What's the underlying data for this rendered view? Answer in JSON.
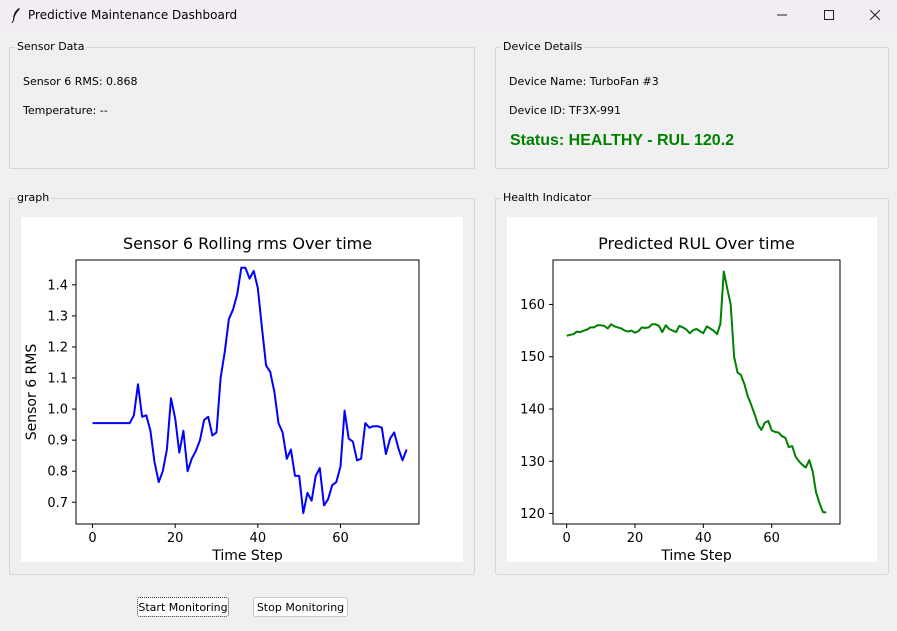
{
  "window": {
    "title": "Predictive Maintenance Dashboard"
  },
  "sensor_frame": {
    "label": "Sensor Data",
    "rms_text": "Sensor 6 RMS: 0.868",
    "temp_text": "Temperature: --"
  },
  "device_frame": {
    "label": "Device Details",
    "name_text": "Device Name: TurboFan #3",
    "id_text": "Device ID: TF3X-991",
    "status_text": "Status: HEALTHY - RUL 120.2",
    "status_color": "#008000"
  },
  "graph_frame": {
    "label": "graph"
  },
  "health_frame": {
    "label": "Health Indicator"
  },
  "buttons": {
    "start": "Start Monitoring",
    "stop": "Stop Monitoring"
  },
  "chart_data": [
    {
      "type": "line",
      "title": "Sensor 6 Rolling rms Over time",
      "xlabel": "Time Step",
      "ylabel": "Sensor 6 RMS",
      "xlim": [
        -4,
        79
      ],
      "ylim": [
        0.63,
        1.48
      ],
      "xticks": [
        0,
        20,
        40,
        60
      ],
      "yticks": [
        0.7,
        0.8,
        0.9,
        1.0,
        1.1,
        1.2,
        1.3,
        1.4
      ],
      "ytick_labels": [
        "0.7",
        "0.8",
        "0.9",
        "1.0",
        "1.1",
        "1.2",
        "1.3",
        "1.4"
      ],
      "series": [
        {
          "color": "#0000ff",
          "x": [
            0,
            1,
            2,
            3,
            4,
            5,
            6,
            7,
            8,
            9,
            10,
            11,
            12,
            13,
            14,
            15,
            16,
            17,
            18,
            19,
            20,
            21,
            22,
            23,
            24,
            25,
            26,
            27,
            28,
            29,
            30,
            31,
            32,
            33,
            34,
            35,
            36,
            37,
            38,
            39,
            40,
            41,
            42,
            43,
            44,
            45,
            46,
            47,
            48,
            49,
            50,
            51,
            52,
            53,
            54,
            55,
            56,
            57,
            58,
            59,
            60,
            61,
            62,
            63,
            64,
            65,
            66,
            67,
            68,
            69,
            70,
            71,
            72,
            73,
            74,
            75,
            76
          ],
          "y": [
            0.955,
            0.955,
            0.955,
            0.955,
            0.955,
            0.955,
            0.955,
            0.955,
            0.955,
            0.955,
            0.98,
            1.08,
            0.975,
            0.98,
            0.93,
            0.83,
            0.765,
            0.8,
            0.87,
            1.035,
            0.97,
            0.86,
            0.93,
            0.8,
            0.84,
            0.865,
            0.9,
            0.965,
            0.975,
            0.915,
            0.925,
            1.1,
            1.185,
            1.29,
            1.32,
            1.37,
            1.455,
            1.455,
            1.42,
            1.445,
            1.39,
            1.26,
            1.14,
            1.12,
            1.055,
            0.955,
            0.925,
            0.84,
            0.87,
            0.785,
            0.785,
            0.665,
            0.73,
            0.705,
            0.785,
            0.81,
            0.69,
            0.71,
            0.755,
            0.765,
            0.815,
            0.995,
            0.905,
            0.895,
            0.835,
            0.84,
            0.955,
            0.94,
            0.945,
            0.945,
            0.94,
            0.855,
            0.905,
            0.925,
            0.875,
            0.835,
            0.87
          ]
        }
      ]
    },
    {
      "type": "line",
      "title": "Predicted RUL Over time",
      "xlabel": "Time Step",
      "ylabel": "",
      "xlim": [
        -4,
        80
      ],
      "ylim": [
        118,
        168.5
      ],
      "xticks": [
        0,
        20,
        40,
        60
      ],
      "yticks": [
        120,
        130,
        140,
        150,
        160
      ],
      "ytick_labels": [
        "120",
        "130",
        "140",
        "150",
        "160"
      ],
      "series": [
        {
          "color": "#008000",
          "x": [
            0,
            1,
            2,
            3,
            4,
            5,
            6,
            7,
            8,
            9,
            10,
            11,
            12,
            13,
            14,
            15,
            16,
            17,
            18,
            19,
            20,
            21,
            22,
            23,
            24,
            25,
            26,
            27,
            28,
            29,
            30,
            31,
            32,
            33,
            34,
            35,
            36,
            37,
            38,
            39,
            40,
            41,
            42,
            43,
            44,
            45,
            46,
            47,
            48,
            49,
            50,
            51,
            52,
            53,
            54,
            55,
            56,
            57,
            58,
            59,
            60,
            61,
            62,
            63,
            64,
            65,
            66,
            67,
            68,
            69,
            70,
            71,
            72,
            73,
            74,
            75,
            76
          ],
          "y": [
            154.0,
            154.2,
            154.3,
            154.8,
            154.7,
            155.0,
            155.2,
            155.6,
            155.6,
            156.0,
            156.0,
            155.9,
            155.4,
            156.2,
            155.8,
            155.6,
            155.4,
            155.0,
            154.8,
            155.0,
            154.6,
            154.9,
            155.6,
            155.5,
            155.6,
            156.2,
            156.2,
            155.9,
            154.7,
            156.0,
            155.3,
            155.0,
            154.7,
            155.9,
            155.6,
            155.2,
            154.5,
            155.1,
            155.3,
            154.9,
            154.5,
            155.8,
            155.4,
            155.0,
            154.3,
            156.3,
            166.3,
            163.0,
            160.0,
            150.0,
            147.0,
            146.5,
            144.8,
            142.4,
            140.8,
            139.0,
            137.0,
            136.0,
            137.4,
            137.7,
            135.9,
            135.6,
            135.5,
            134.8,
            134.5,
            132.7,
            132.9,
            130.9,
            130.0,
            129.3,
            128.8,
            130.2,
            128.0,
            124.0,
            122.0,
            120.3,
            120.2
          ]
        }
      ]
    }
  ]
}
